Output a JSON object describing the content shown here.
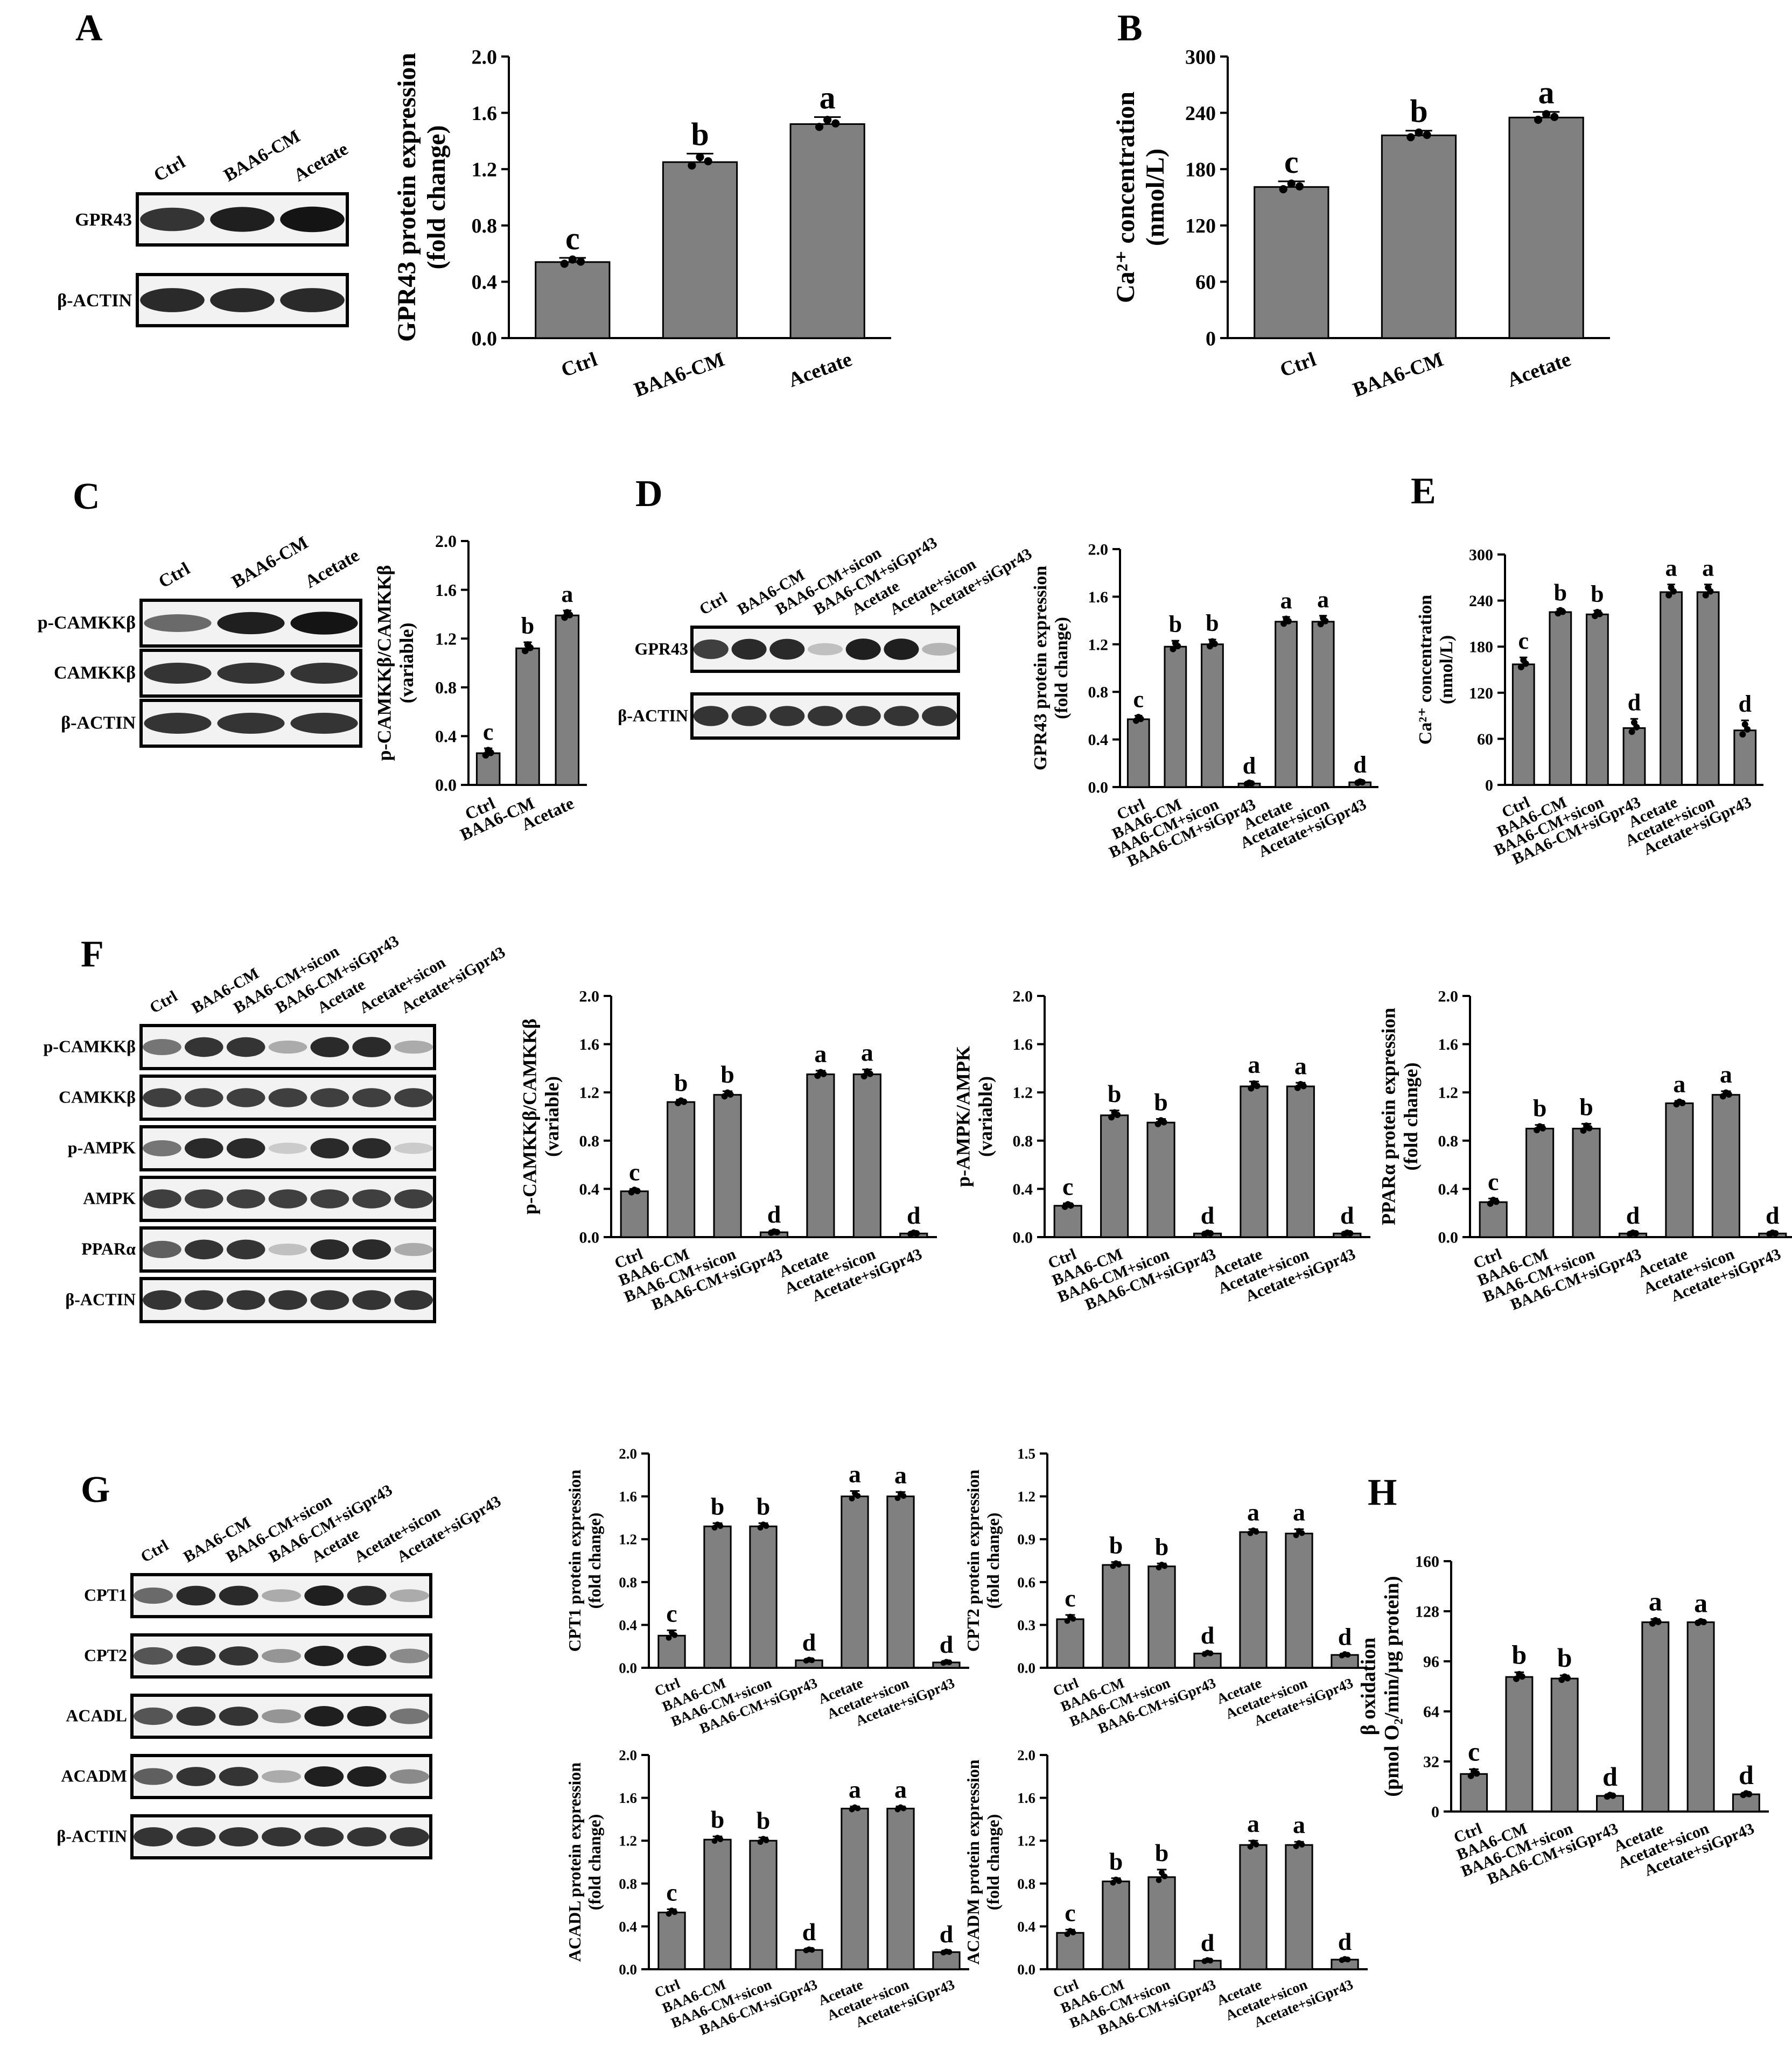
{
  "figure": {
    "panel_labels": [
      "A",
      "B",
      "C",
      "D",
      "E",
      "F",
      "G",
      "H"
    ],
    "colors": {
      "bar": "#808080",
      "axis": "#000000",
      "blot_bg": "#f2f2f2",
      "band": "#1a1a1a",
      "point": "#000000"
    }
  },
  "blots": [
    {
      "id": "A",
      "lanes": [
        "Ctrl",
        "BAA6-CM",
        "Acetate"
      ],
      "rows": [
        {
          "label": "GPR43",
          "intensity": [
            0.85,
            0.95,
            1.0
          ]
        },
        {
          "label": "β-ACTIN",
          "intensity": [
            0.9,
            0.9,
            0.9
          ]
        }
      ]
    },
    {
      "id": "C",
      "lanes": [
        "Ctrl",
        "BAA6-CM",
        "Acetate"
      ],
      "rows": [
        {
          "label": "p-CAMKKβ",
          "intensity": [
            0.6,
            0.95,
            1.0
          ]
        },
        {
          "label": "CAMKKβ",
          "intensity": [
            0.85,
            0.85,
            0.85
          ]
        },
        {
          "label": "β-ACTIN",
          "intensity": [
            0.85,
            0.85,
            0.85
          ]
        }
      ]
    },
    {
      "id": "D",
      "lanes": [
        "Ctrl",
        "BAA6-CM",
        "BAA6-CM+sicon",
        "BAA6-CM+siGpr43",
        "Acetate",
        "Acetate+sicon",
        "Acetate+siGpr43"
      ],
      "rows": [
        {
          "label": "GPR43",
          "intensity": [
            0.8,
            0.9,
            0.9,
            0.2,
            0.95,
            0.95,
            0.25
          ]
        },
        {
          "label": "β-ACTIN",
          "intensity": [
            0.85,
            0.85,
            0.85,
            0.85,
            0.85,
            0.85,
            0.85
          ]
        }
      ]
    },
    {
      "id": "F",
      "lanes": [
        "Ctrl",
        "BAA6-CM",
        "BAA6-CM+sicon",
        "BAA6-CM+siGpr43",
        "Acetate",
        "Acetate+sicon",
        "Acetate+siGpr43"
      ],
      "rows": [
        {
          "label": "p-CAMKKβ",
          "intensity": [
            0.55,
            0.85,
            0.85,
            0.3,
            0.9,
            0.9,
            0.3
          ]
        },
        {
          "label": "CAMKKβ",
          "intensity": [
            0.8,
            0.8,
            0.8,
            0.8,
            0.8,
            0.8,
            0.8
          ]
        },
        {
          "label": "p-AMPK",
          "intensity": [
            0.55,
            0.9,
            0.9,
            0.15,
            0.9,
            0.9,
            0.15
          ]
        },
        {
          "label": "AMPK",
          "intensity": [
            0.8,
            0.8,
            0.8,
            0.8,
            0.8,
            0.8,
            0.8
          ]
        },
        {
          "label": "PPARα",
          "intensity": [
            0.65,
            0.85,
            0.85,
            0.2,
            0.9,
            0.9,
            0.3
          ]
        },
        {
          "label": "β-ACTIN",
          "intensity": [
            0.85,
            0.85,
            0.85,
            0.85,
            0.85,
            0.85,
            0.85
          ]
        }
      ]
    },
    {
      "id": "G",
      "lanes": [
        "Ctrl",
        "BAA6-CM",
        "BAA6-CM+sicon",
        "BAA6-CM+siGpr43",
        "Acetate",
        "Acetate+sicon",
        "Acetate+siGpr43"
      ],
      "rows": [
        {
          "label": "CPT1",
          "intensity": [
            0.6,
            0.9,
            0.9,
            0.3,
            0.95,
            0.9,
            0.3
          ]
        },
        {
          "label": "CPT2",
          "intensity": [
            0.7,
            0.85,
            0.85,
            0.4,
            0.95,
            0.95,
            0.45
          ]
        },
        {
          "label": "ACADL",
          "intensity": [
            0.7,
            0.85,
            0.85,
            0.4,
            0.95,
            0.95,
            0.55
          ]
        },
        {
          "label": "ACADM",
          "intensity": [
            0.65,
            0.85,
            0.85,
            0.3,
            0.95,
            0.95,
            0.45
          ]
        },
        {
          "label": "β-ACTIN",
          "intensity": [
            0.85,
            0.85,
            0.85,
            0.85,
            0.85,
            0.85,
            0.85
          ]
        }
      ]
    }
  ],
  "chart_data": [
    {
      "id": "A",
      "type": "bar",
      "categories": [
        "Ctrl",
        "BAA6-CM",
        "Acetate"
      ],
      "values": [
        0.54,
        1.25,
        1.52
      ],
      "errors": [
        0.03,
        0.06,
        0.05
      ],
      "letters": [
        "c",
        "b",
        "a"
      ],
      "ylabel": [
        "GPR43 protein expression",
        "(fold change)"
      ],
      "ylim": [
        0,
        2.0
      ],
      "yticks": [
        "0.0",
        "0.4",
        "0.8",
        "1.2",
        "1.6",
        "2.0"
      ]
    },
    {
      "id": "B",
      "type": "bar",
      "categories": [
        "Ctrl",
        "BAA6-CM",
        "Acetate"
      ],
      "values": [
        161,
        216,
        235
      ],
      "errors": [
        6,
        5,
        6
      ],
      "letters": [
        "c",
        "b",
        "a"
      ],
      "ylabel": [
        "Ca²⁺ concentration",
        "(nmol/L)"
      ],
      "ylim": [
        0,
        300
      ],
      "yticks": [
        "0",
        "60",
        "120",
        "180",
        "240",
        "300"
      ]
    },
    {
      "id": "C",
      "type": "bar",
      "categories": [
        "Ctrl",
        "BAA6-CM",
        "Acetate"
      ],
      "values": [
        0.26,
        1.12,
        1.39
      ],
      "errors": [
        0.04,
        0.05,
        0.04
      ],
      "letters": [
        "c",
        "b",
        "a"
      ],
      "ylabel": [
        "p-CAMKKβ/CAMKKβ",
        "(variable)"
      ],
      "ylim": [
        0,
        2.0
      ],
      "yticks": [
        "0.0",
        "0.4",
        "0.8",
        "1.2",
        "1.6",
        "2.0"
      ]
    },
    {
      "id": "D",
      "type": "bar",
      "categories": [
        "Ctrl",
        "BAA6-CM",
        "BAA6-CM+sicon",
        "BAA6-CM+siGpr43",
        "Acetate",
        "Acetate+sicon",
        "Acetate+siGpr43"
      ],
      "values": [
        0.57,
        1.18,
        1.2,
        0.03,
        1.39,
        1.39,
        0.04
      ],
      "errors": [
        0.03,
        0.05,
        0.04,
        0.01,
        0.04,
        0.05,
        0.01
      ],
      "letters": [
        "c",
        "b",
        "b",
        "d",
        "a",
        "a",
        "d"
      ],
      "ylabel": [
        "GPR43 protein expression",
        "(fold change)"
      ],
      "ylim": [
        0,
        2.0
      ],
      "yticks": [
        "0.0",
        "0.4",
        "0.8",
        "1.2",
        "1.6",
        "2.0"
      ]
    },
    {
      "id": "E",
      "type": "bar",
      "categories": [
        "Ctrl",
        "BAA6-CM",
        "BAA6-CM+sicon",
        "BAA6-CM+siGpr43",
        "Acetate",
        "Acetate+sicon",
        "Acetate+siGpr43"
      ],
      "values": [
        157,
        225,
        222,
        74,
        251,
        251,
        71
      ],
      "errors": [
        9,
        4,
        5,
        12,
        10,
        10,
        13
      ],
      "letters": [
        "c",
        "b",
        "b",
        "d",
        "a",
        "a",
        "d"
      ],
      "ylabel": [
        "Ca²⁺ concentration",
        "(nmol/L)"
      ],
      "ylim": [
        0,
        300
      ],
      "yticks": [
        "0",
        "60",
        "120",
        "180",
        "240",
        "300"
      ]
    },
    {
      "id": "F1",
      "type": "bar",
      "categories": [
        "Ctrl",
        "BAA6-CM",
        "BAA6-CM+sicon",
        "BAA6-CM+siGpr43",
        "Acetate",
        "Acetate+sicon",
        "Acetate+siGpr43"
      ],
      "values": [
        0.38,
        1.12,
        1.18,
        0.04,
        1.35,
        1.35,
        0.03
      ],
      "errors": [
        0.02,
        0.02,
        0.03,
        0.01,
        0.03,
        0.04,
        0.01
      ],
      "letters": [
        "c",
        "b",
        "b",
        "d",
        "a",
        "a",
        "d"
      ],
      "ylabel": [
        "p-CAMKKβ/CAMKKβ",
        "(variable)"
      ],
      "ylim": [
        0,
        2.0
      ],
      "yticks": [
        "0.0",
        "0.4",
        "0.8",
        "1.2",
        "1.6",
        "2.0"
      ]
    },
    {
      "id": "F2",
      "type": "bar",
      "categories": [
        "Ctrl",
        "BAA6-CM",
        "BAA6-CM+sicon",
        "BAA6-CM+siGpr43",
        "Acetate",
        "Acetate+sicon",
        "Acetate+siGpr43"
      ],
      "values": [
        0.26,
        1.01,
        0.95,
        0.03,
        1.25,
        1.25,
        0.03
      ],
      "errors": [
        0.02,
        0.04,
        0.03,
        0.01,
        0.04,
        0.03,
        0.01
      ],
      "letters": [
        "c",
        "b",
        "b",
        "d",
        "a",
        "a",
        "d"
      ],
      "ylabel": [
        "p-AMPK/AMPK",
        "(variable)"
      ],
      "ylim": [
        0,
        2.0
      ],
      "yticks": [
        "0.0",
        "0.4",
        "0.8",
        "1.2",
        "1.6",
        "2.0"
      ]
    },
    {
      "id": "F3",
      "type": "bar",
      "categories": [
        "Ctrl",
        "BAA6-CM",
        "BAA6-CM+sicon",
        "BAA6-CM+siGpr43",
        "Acetate",
        "Acetate+sicon",
        "Acetate+siGpr43"
      ],
      "values": [
        0.29,
        0.9,
        0.9,
        0.03,
        1.11,
        1.18,
        0.03
      ],
      "errors": [
        0.03,
        0.03,
        0.04,
        0.01,
        0.02,
        0.03,
        0.01
      ],
      "letters": [
        "c",
        "b",
        "b",
        "d",
        "a",
        "a",
        "d"
      ],
      "ylabel": [
        "PPARα protein expression",
        "(fold change)"
      ],
      "ylim": [
        0,
        2.0
      ],
      "yticks": [
        "0.0",
        "0.4",
        "0.8",
        "1.2",
        "1.6",
        "2.0"
      ]
    },
    {
      "id": "G1",
      "type": "bar",
      "categories": [
        "Ctrl",
        "BAA6-CM",
        "BAA6-CM+sicon",
        "BAA6-CM+siGpr43",
        "Acetate",
        "Acetate+sicon",
        "Acetate+siGpr43"
      ],
      "values": [
        0.3,
        1.32,
        1.32,
        0.07,
        1.6,
        1.6,
        0.05
      ],
      "errors": [
        0.05,
        0.03,
        0.03,
        0.01,
        0.05,
        0.04,
        0.01
      ],
      "letters": [
        "c",
        "b",
        "b",
        "d",
        "a",
        "a",
        "d"
      ],
      "ylabel": [
        "CPT1 protein expression",
        "(fold change)"
      ],
      "ylim": [
        0,
        2.0
      ],
      "yticks": [
        "0.0",
        "0.4",
        "0.8",
        "1.2",
        "1.6",
        "2.0"
      ]
    },
    {
      "id": "G2",
      "type": "bar",
      "categories": [
        "Ctrl",
        "BAA6-CM",
        "BAA6-CM+sicon",
        "BAA6-CM+siGpr43",
        "Acetate",
        "Acetate+sicon",
        "Acetate+siGpr43"
      ],
      "values": [
        0.34,
        0.72,
        0.71,
        0.1,
        0.95,
        0.94,
        0.09
      ],
      "errors": [
        0.03,
        0.02,
        0.02,
        0.01,
        0.02,
        0.03,
        0.01
      ],
      "letters": [
        "c",
        "b",
        "b",
        "d",
        "a",
        "a",
        "d"
      ],
      "ylabel": [
        "CPT2 protein expression",
        "(fold change)"
      ],
      "ylim": [
        0,
        1.5
      ],
      "yticks": [
        "0.0",
        "0.3",
        "0.6",
        "0.9",
        "1.2",
        "1.5"
      ]
    },
    {
      "id": "G3",
      "type": "bar",
      "categories": [
        "Ctrl",
        "BAA6-CM",
        "BAA6-CM+sicon",
        "BAA6-CM+siGpr43",
        "Acetate",
        "Acetate+sicon",
        "Acetate+siGpr43"
      ],
      "values": [
        0.53,
        1.21,
        1.2,
        0.18,
        1.5,
        1.5,
        0.16
      ],
      "errors": [
        0.03,
        0.03,
        0.03,
        0.01,
        0.02,
        0.02,
        0.01
      ],
      "letters": [
        "c",
        "b",
        "b",
        "d",
        "a",
        "a",
        "d"
      ],
      "ylabel": [
        "ACADL protein expression",
        "(fold change)"
      ],
      "ylim": [
        0,
        2.0
      ],
      "yticks": [
        "0.0",
        "0.4",
        "0.8",
        "1.2",
        "1.6",
        "2.0"
      ]
    },
    {
      "id": "G4",
      "type": "bar",
      "categories": [
        "Ctrl",
        "BAA6-CM",
        "BAA6-CM+sicon",
        "BAA6-CM+siGpr43",
        "Acetate",
        "Acetate+sicon",
        "Acetate+siGpr43"
      ],
      "values": [
        0.34,
        0.82,
        0.86,
        0.08,
        1.16,
        1.16,
        0.09
      ],
      "errors": [
        0.03,
        0.03,
        0.07,
        0.01,
        0.04,
        0.03,
        0.01
      ],
      "letters": [
        "c",
        "b",
        "b",
        "d",
        "a",
        "a",
        "d"
      ],
      "ylabel": [
        "ACADM protein expression",
        "(fold change)"
      ],
      "ylim": [
        0,
        2.0
      ],
      "yticks": [
        "0.0",
        "0.4",
        "0.8",
        "1.2",
        "1.6",
        "2.0"
      ]
    },
    {
      "id": "H",
      "type": "bar",
      "categories": [
        "Ctrl",
        "BAA6-CM",
        "BAA6-CM+sicon",
        "BAA6-CM+siGpr43",
        "Acetate",
        "Acetate+sicon",
        "Acetate+siGpr43"
      ],
      "values": [
        24,
        86,
        85,
        10,
        121,
        121,
        11
      ],
      "errors": [
        3,
        3,
        2,
        1,
        2,
        1,
        1
      ],
      "letters": [
        "c",
        "b",
        "b",
        "d",
        "a",
        "a",
        "d"
      ],
      "ylabel": [
        "β oxidation",
        "(pmol O₂/min/μg protein)"
      ],
      "ylim": [
        0,
        160
      ],
      "yticks": [
        "0",
        "32",
        "64",
        "96",
        "128",
        "160"
      ]
    }
  ]
}
